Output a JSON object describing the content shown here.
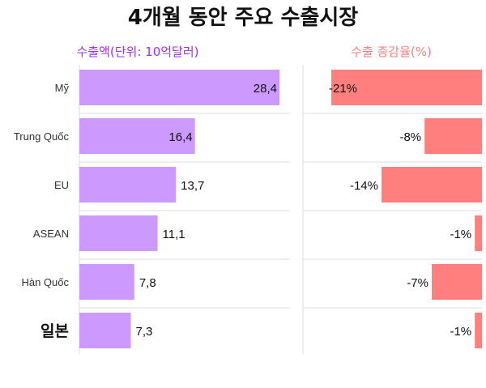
{
  "title": "4개월 동안 주요 수출시장",
  "colors": {
    "left_bar": "#cc99ff",
    "left_title": "#9b30ff",
    "right_bar": "#ff7f7f",
    "right_title": "#ff7f7f",
    "grid": "#dddddd"
  },
  "chart_data": [
    {
      "type": "bar",
      "orientation": "horizontal",
      "title": "수출액(단위: 10억달러)",
      "categories": [
        "Mỹ",
        "Trung Quốc",
        "EU",
        "ASEAN",
        "Hàn Quốc",
        "일본"
      ],
      "values": [
        28.4,
        16.4,
        13.7,
        11.1,
        7.8,
        7.3
      ],
      "value_labels": [
        "28,4",
        "16,4",
        "13,7",
        "11,1",
        "7,8",
        "7,3"
      ],
      "xlim": [
        0,
        30
      ],
      "grid": true
    },
    {
      "type": "bar",
      "orientation": "horizontal",
      "title": "수출 증감율(%)",
      "categories": [
        "Mỹ",
        "Trung Quốc",
        "EU",
        "ASEAN",
        "Hàn Quốc",
        "일본"
      ],
      "values": [
        -21,
        -8,
        -14,
        -1,
        -7,
        -1
      ],
      "value_labels": [
        "-21%",
        "-8%",
        "-14%",
        "-1%",
        "-7%",
        "-1%"
      ],
      "xlim": [
        -22,
        0
      ],
      "grid": true
    }
  ]
}
